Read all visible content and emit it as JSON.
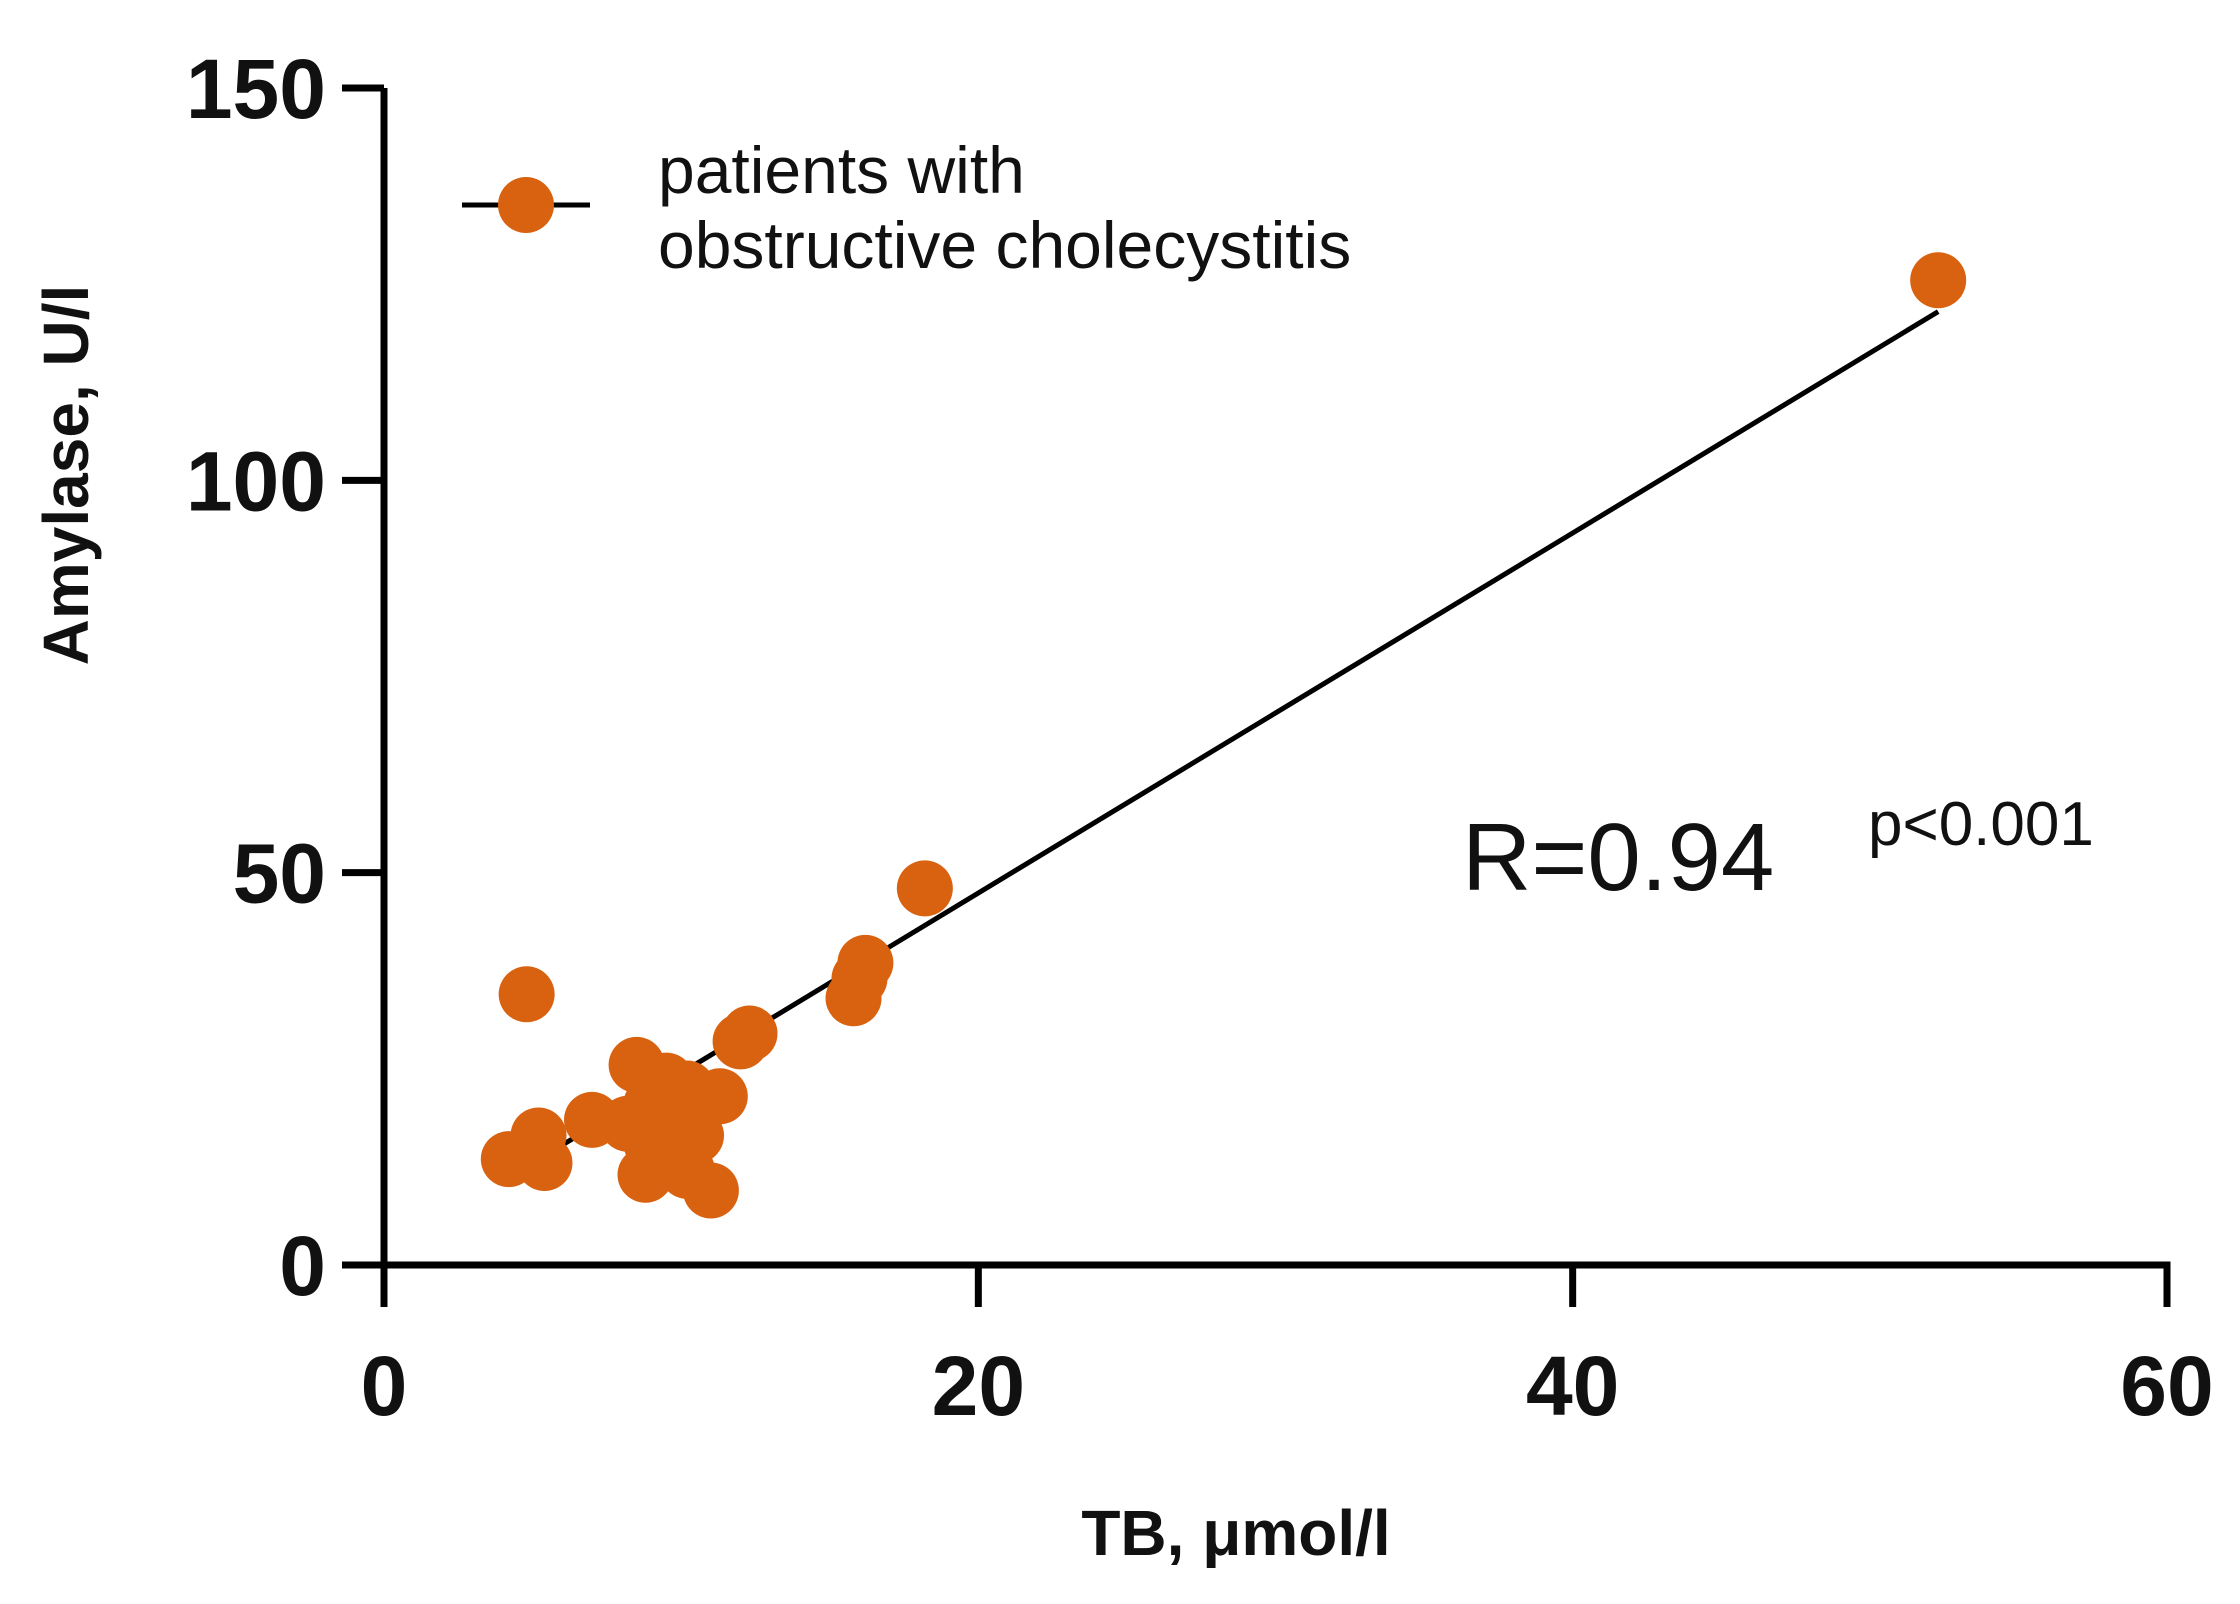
{
  "chart_data": {
    "type": "scatter",
    "title": "",
    "xlabel": "TB, μmol/l",
    "ylabel": "Amylase, U/l",
    "xlim": [
      0,
      60
    ],
    "ylim": [
      0,
      150
    ],
    "xticks": [
      0,
      20,
      40,
      60
    ],
    "yticks": [
      0,
      50,
      100,
      150
    ],
    "xtick_labels": [
      "0",
      "20",
      "40",
      "60"
    ],
    "ytick_labels": [
      "0",
      "50",
      "100",
      "150"
    ],
    "grid": false,
    "legend_position": "top-left",
    "series": [
      {
        "name": "patients with obstructive cholecystitis",
        "legend_lines": [
          "patients with",
          "obstructive cholecystitis"
        ],
        "color": "#d8620f",
        "points": [
          {
            "x": 52.3,
            "y": 125.5
          },
          {
            "x": 18.2,
            "y": 48.0
          },
          {
            "x": 16.2,
            "y": 38.5
          },
          {
            "x": 16.0,
            "y": 36.5
          },
          {
            "x": 15.8,
            "y": 34.0
          },
          {
            "x": 12.3,
            "y": 29.5
          },
          {
            "x": 12.0,
            "y": 28.5
          },
          {
            "x": 4.8,
            "y": 34.5
          },
          {
            "x": 8.5,
            "y": 25.5
          },
          {
            "x": 9.5,
            "y": 23.5
          },
          {
            "x": 10.2,
            "y": 22.5
          },
          {
            "x": 11.3,
            "y": 21.5
          },
          {
            "x": 9.0,
            "y": 20.5
          },
          {
            "x": 9.8,
            "y": 19.5
          },
          {
            "x": 7.0,
            "y": 18.5
          },
          {
            "x": 8.2,
            "y": 18.0
          },
          {
            "x": 9.3,
            "y": 17.5
          },
          {
            "x": 10.5,
            "y": 16.5
          },
          {
            "x": 5.2,
            "y": 16.5
          },
          {
            "x": 9.0,
            "y": 15.5
          },
          {
            "x": 10.0,
            "y": 14.5
          },
          {
            "x": 5.0,
            "y": 14.0
          },
          {
            "x": 4.2,
            "y": 13.5
          },
          {
            "x": 5.4,
            "y": 13.0
          },
          {
            "x": 9.7,
            "y": 13.0
          },
          {
            "x": 8.8,
            "y": 11.5
          },
          {
            "x": 10.2,
            "y": 12.0
          },
          {
            "x": 11.0,
            "y": 9.5
          }
        ]
      }
    ],
    "fit_line": {
      "color": "#000000",
      "x_start": 5.0,
      "y_start": 13.0,
      "x_end": 52.3,
      "y_end": 121.5
    },
    "annotation": {
      "main": "R=0.94",
      "superscript": "p<0.001"
    }
  }
}
